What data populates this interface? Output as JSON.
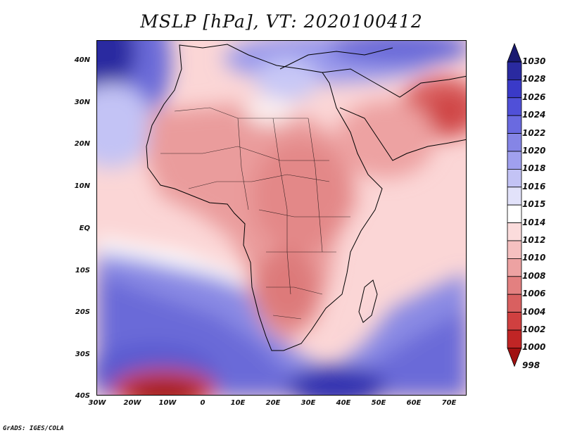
{
  "title": "MSLP [hPa], VT: 2020100412",
  "credit": "GrADS: IGES/COLA",
  "map": {
    "region": "Africa and surrounding oceans",
    "lon_ticks": [
      "30W",
      "20W",
      "10W",
      "0",
      "10E",
      "20E",
      "30E",
      "40E",
      "50E",
      "60E",
      "70E"
    ],
    "lat_ticks": [
      "40N",
      "30N",
      "20N",
      "10N",
      "EQ",
      "10S",
      "20S",
      "30S",
      "40S"
    ]
  },
  "colorbar": {
    "levels": [
      "1030",
      "1028",
      "1026",
      "1024",
      "1022",
      "1020",
      "1018",
      "1016",
      "1015",
      "1014",
      "1012",
      "1010",
      "1008",
      "1006",
      "1004",
      "1002",
      "1000",
      "998"
    ],
    "colors": [
      "#191970",
      "#2a2aa0",
      "#3a3ac8",
      "#5050d8",
      "#6a6ae0",
      "#8585e6",
      "#a0a0ee",
      "#c3c3f5",
      "#e2e2fa",
      "#ffffff",
      "#fbdcdc",
      "#f5c0c0",
      "#eda2a2",
      "#e38080",
      "#d96060",
      "#d04040",
      "#c02525",
      "#a01010"
    ]
  }
}
